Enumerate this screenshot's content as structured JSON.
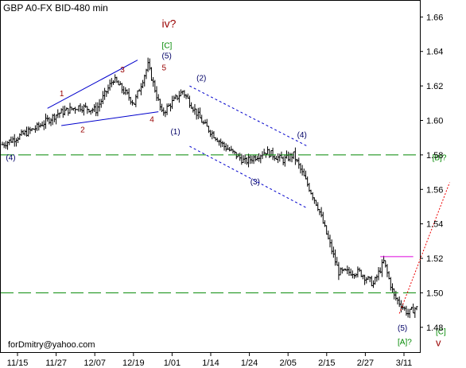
{
  "chart_data": {
    "type": "ohlc",
    "title": "GBP A0-FX BID-480 min",
    "watermark": "forDmitry@yahoo.com",
    "ylim": [
      1.467,
      1.668
    ],
    "y_ticks": [
      "1.48",
      "1.50",
      "1.52",
      "1.54",
      "1.56",
      "1.58",
      "1.60",
      "1.62",
      "1.64",
      "1.66"
    ],
    "x_ticks": [
      "11/15",
      "11/27",
      "12/07",
      "12/19",
      "1/01",
      "1/14",
      "1/24",
      "2/05",
      "2/15",
      "2/27",
      "3/11"
    ],
    "bar_count": 240,
    "price_path": [
      [
        0,
        1.586
      ],
      [
        20,
        1.596
      ],
      [
        32,
        1.604
      ],
      [
        44,
        1.608
      ],
      [
        54,
        1.606
      ],
      [
        64,
        1.624
      ],
      [
        76,
        1.61
      ],
      [
        84,
        1.632
      ],
      [
        92,
        1.604
      ],
      [
        104,
        1.617
      ],
      [
        116,
        1.598
      ],
      [
        128,
        1.585
      ],
      [
        140,
        1.576
      ],
      [
        152,
        1.582
      ],
      [
        162,
        1.577
      ],
      [
        168,
        1.58
      ],
      [
        182,
        1.55
      ],
      [
        194,
        1.512
      ],
      [
        206,
        1.512
      ],
      [
        214,
        1.505
      ],
      [
        220,
        1.518
      ],
      [
        226,
        1.498
      ],
      [
        234,
        1.488
      ],
      [
        238,
        1.491
      ]
    ],
    "hlines": [
      {
        "value": 1.58,
        "style": "dashed",
        "color": "#008800"
      },
      {
        "value": 1.5,
        "style": "dashed",
        "color": "#008800"
      },
      {
        "value": 1.521,
        "from_bar": 218,
        "style": "solid",
        "color": "#dd00dd"
      }
    ],
    "trendlines": [
      {
        "from": [
          26,
          1.607
        ],
        "to": [
          78,
          1.635
        ],
        "style": "solid",
        "color": "#0000cc"
      },
      {
        "from": [
          34,
          1.597
        ],
        "to": [
          90,
          1.605
        ],
        "style": "solid",
        "color": "#0000cc"
      },
      {
        "from": [
          108,
          1.62
        ],
        "to": [
          176,
          1.585
        ],
        "style": "dashed",
        "color": "#0000cc"
      },
      {
        "from": [
          108,
          1.585
        ],
        "to": [
          176,
          1.549
        ],
        "style": "dashed",
        "color": "#0000cc"
      },
      {
        "from": [
          229,
          1.488
        ],
        "to": [
          258,
          1.564
        ],
        "style": "dotted",
        "color": "#ee0000"
      }
    ],
    "annotations": [
      {
        "text": "iv?",
        "x": 92,
        "y": 1.654,
        "color": "#990000",
        "size": 14
      },
      {
        "text": "[C]",
        "x": 92,
        "y": 1.642,
        "color": "#008800",
        "size": 10
      },
      {
        "text": "(5)",
        "x": 92,
        "y": 1.636,
        "color": "#000066",
        "size": 10
      },
      {
        "text": "5",
        "x": 92,
        "y": 1.629,
        "color": "#990000",
        "size": 10
      },
      {
        "text": "3",
        "x": 68,
        "y": 1.628,
        "color": "#990000",
        "size": 10
      },
      {
        "text": "1",
        "x": 33,
        "y": 1.614,
        "color": "#990000",
        "size": 10
      },
      {
        "text": "2",
        "x": 45,
        "y": 1.593,
        "color": "#990000",
        "size": 10
      },
      {
        "text": "4",
        "x": 85,
        "y": 1.599,
        "color": "#990000",
        "size": 10
      },
      {
        "text": "(1)",
        "x": 97,
        "y": 1.592,
        "color": "#000066",
        "size": 10
      },
      {
        "text": "(2)",
        "x": 112,
        "y": 1.623,
        "color": "#000066",
        "size": 10
      },
      {
        "text": "(3)",
        "x": 143,
        "y": 1.563,
        "color": "#000066",
        "size": 10
      },
      {
        "text": "(4)",
        "x": 170,
        "y": 1.59,
        "color": "#000066",
        "size": 10
      },
      {
        "text": "(4)",
        "x": 2,
        "y": 1.577,
        "color": "#000066",
        "size": 10
      },
      {
        "text": "[B]?",
        "x": 248,
        "y": 1.577,
        "color": "#008800",
        "size": 10
      },
      {
        "text": "(5)",
        "x": 228,
        "y": 1.478,
        "color": "#000066",
        "size": 10
      },
      {
        "text": "[A]?",
        "x": 228,
        "y": 1.47,
        "color": "#008800",
        "size": 10
      },
      {
        "text": "[C]",
        "x": 250,
        "y": 1.476,
        "color": "#008800",
        "size": 10
      },
      {
        "text": "v",
        "x": 250,
        "y": 1.469,
        "color": "#990000",
        "size": 13
      }
    ]
  }
}
